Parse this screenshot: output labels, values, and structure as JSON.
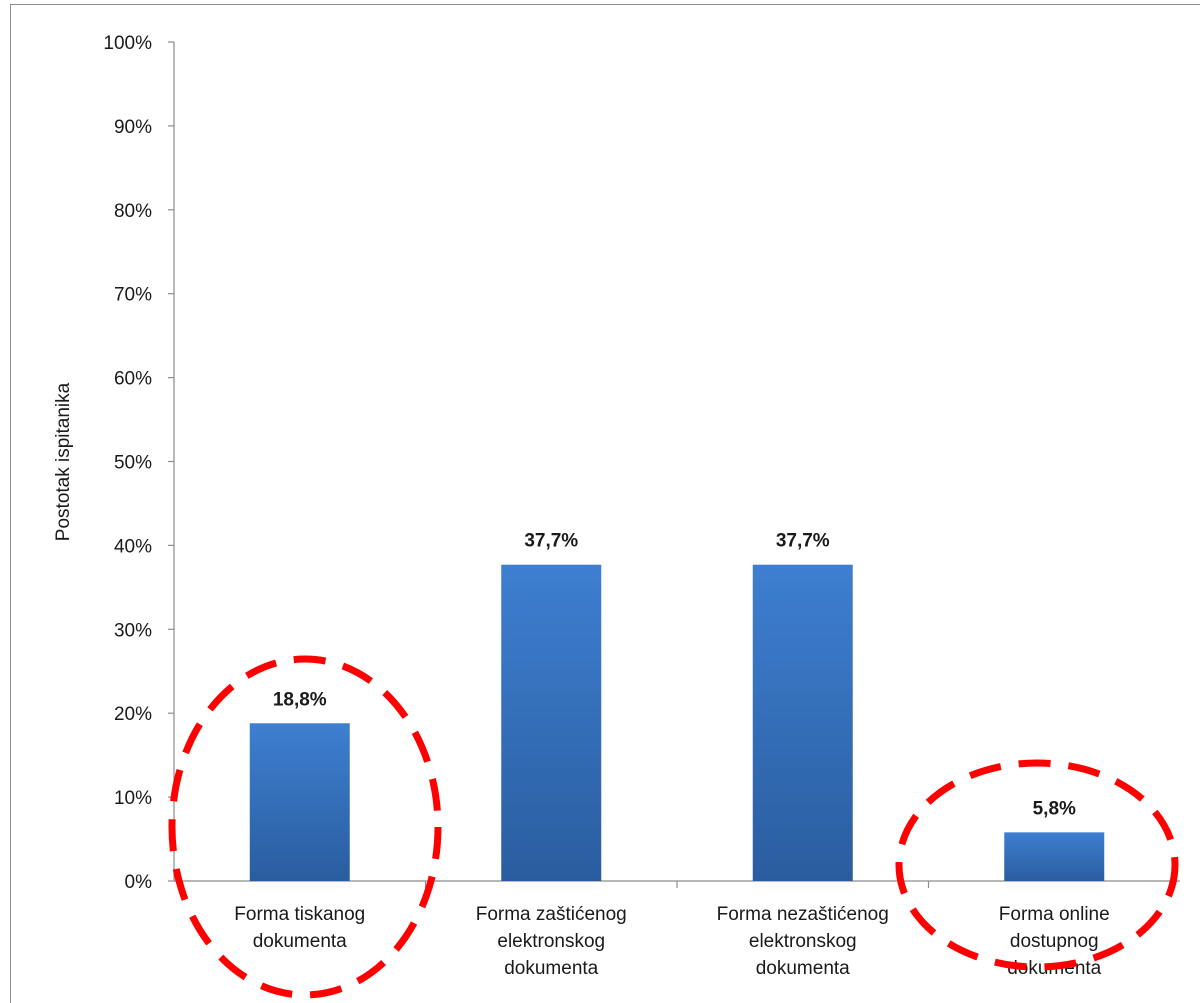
{
  "chart_data": {
    "type": "bar",
    "categories": [
      [
        "Forma tiskanog",
        "dokumenta"
      ],
      [
        "Forma zaštićenog",
        "elektronskog",
        "dokumenta"
      ],
      [
        "Forma nezaštićenog",
        "elektronskog",
        "dokumenta"
      ],
      [
        "Forma online",
        "dostupnog",
        "dokumenta"
      ]
    ],
    "values": [
      18.8,
      37.7,
      37.7,
      5.8
    ],
    "data_labels": [
      "18,8%",
      "37,7%",
      "37,7%",
      "5,8%"
    ],
    "ylabel": "Postotak ispitanika",
    "ylim": [
      0,
      100
    ],
    "y_ticks": [
      0,
      10,
      20,
      30,
      40,
      50,
      60,
      70,
      80,
      90,
      100
    ],
    "y_tick_labels": [
      "0%",
      "10%",
      "20%",
      "30%",
      "40%",
      "50%",
      "60%",
      "70%",
      "80%",
      "90%",
      "100%"
    ],
    "grid": false,
    "legend": "none",
    "colors": {
      "bar_top": "#3e7fd1",
      "bar_bottom": "#2a5d9f",
      "highlight_circle": "#ff0000",
      "axis": "#8c8c8c"
    },
    "highlighted_categories": [
      0,
      3
    ]
  }
}
